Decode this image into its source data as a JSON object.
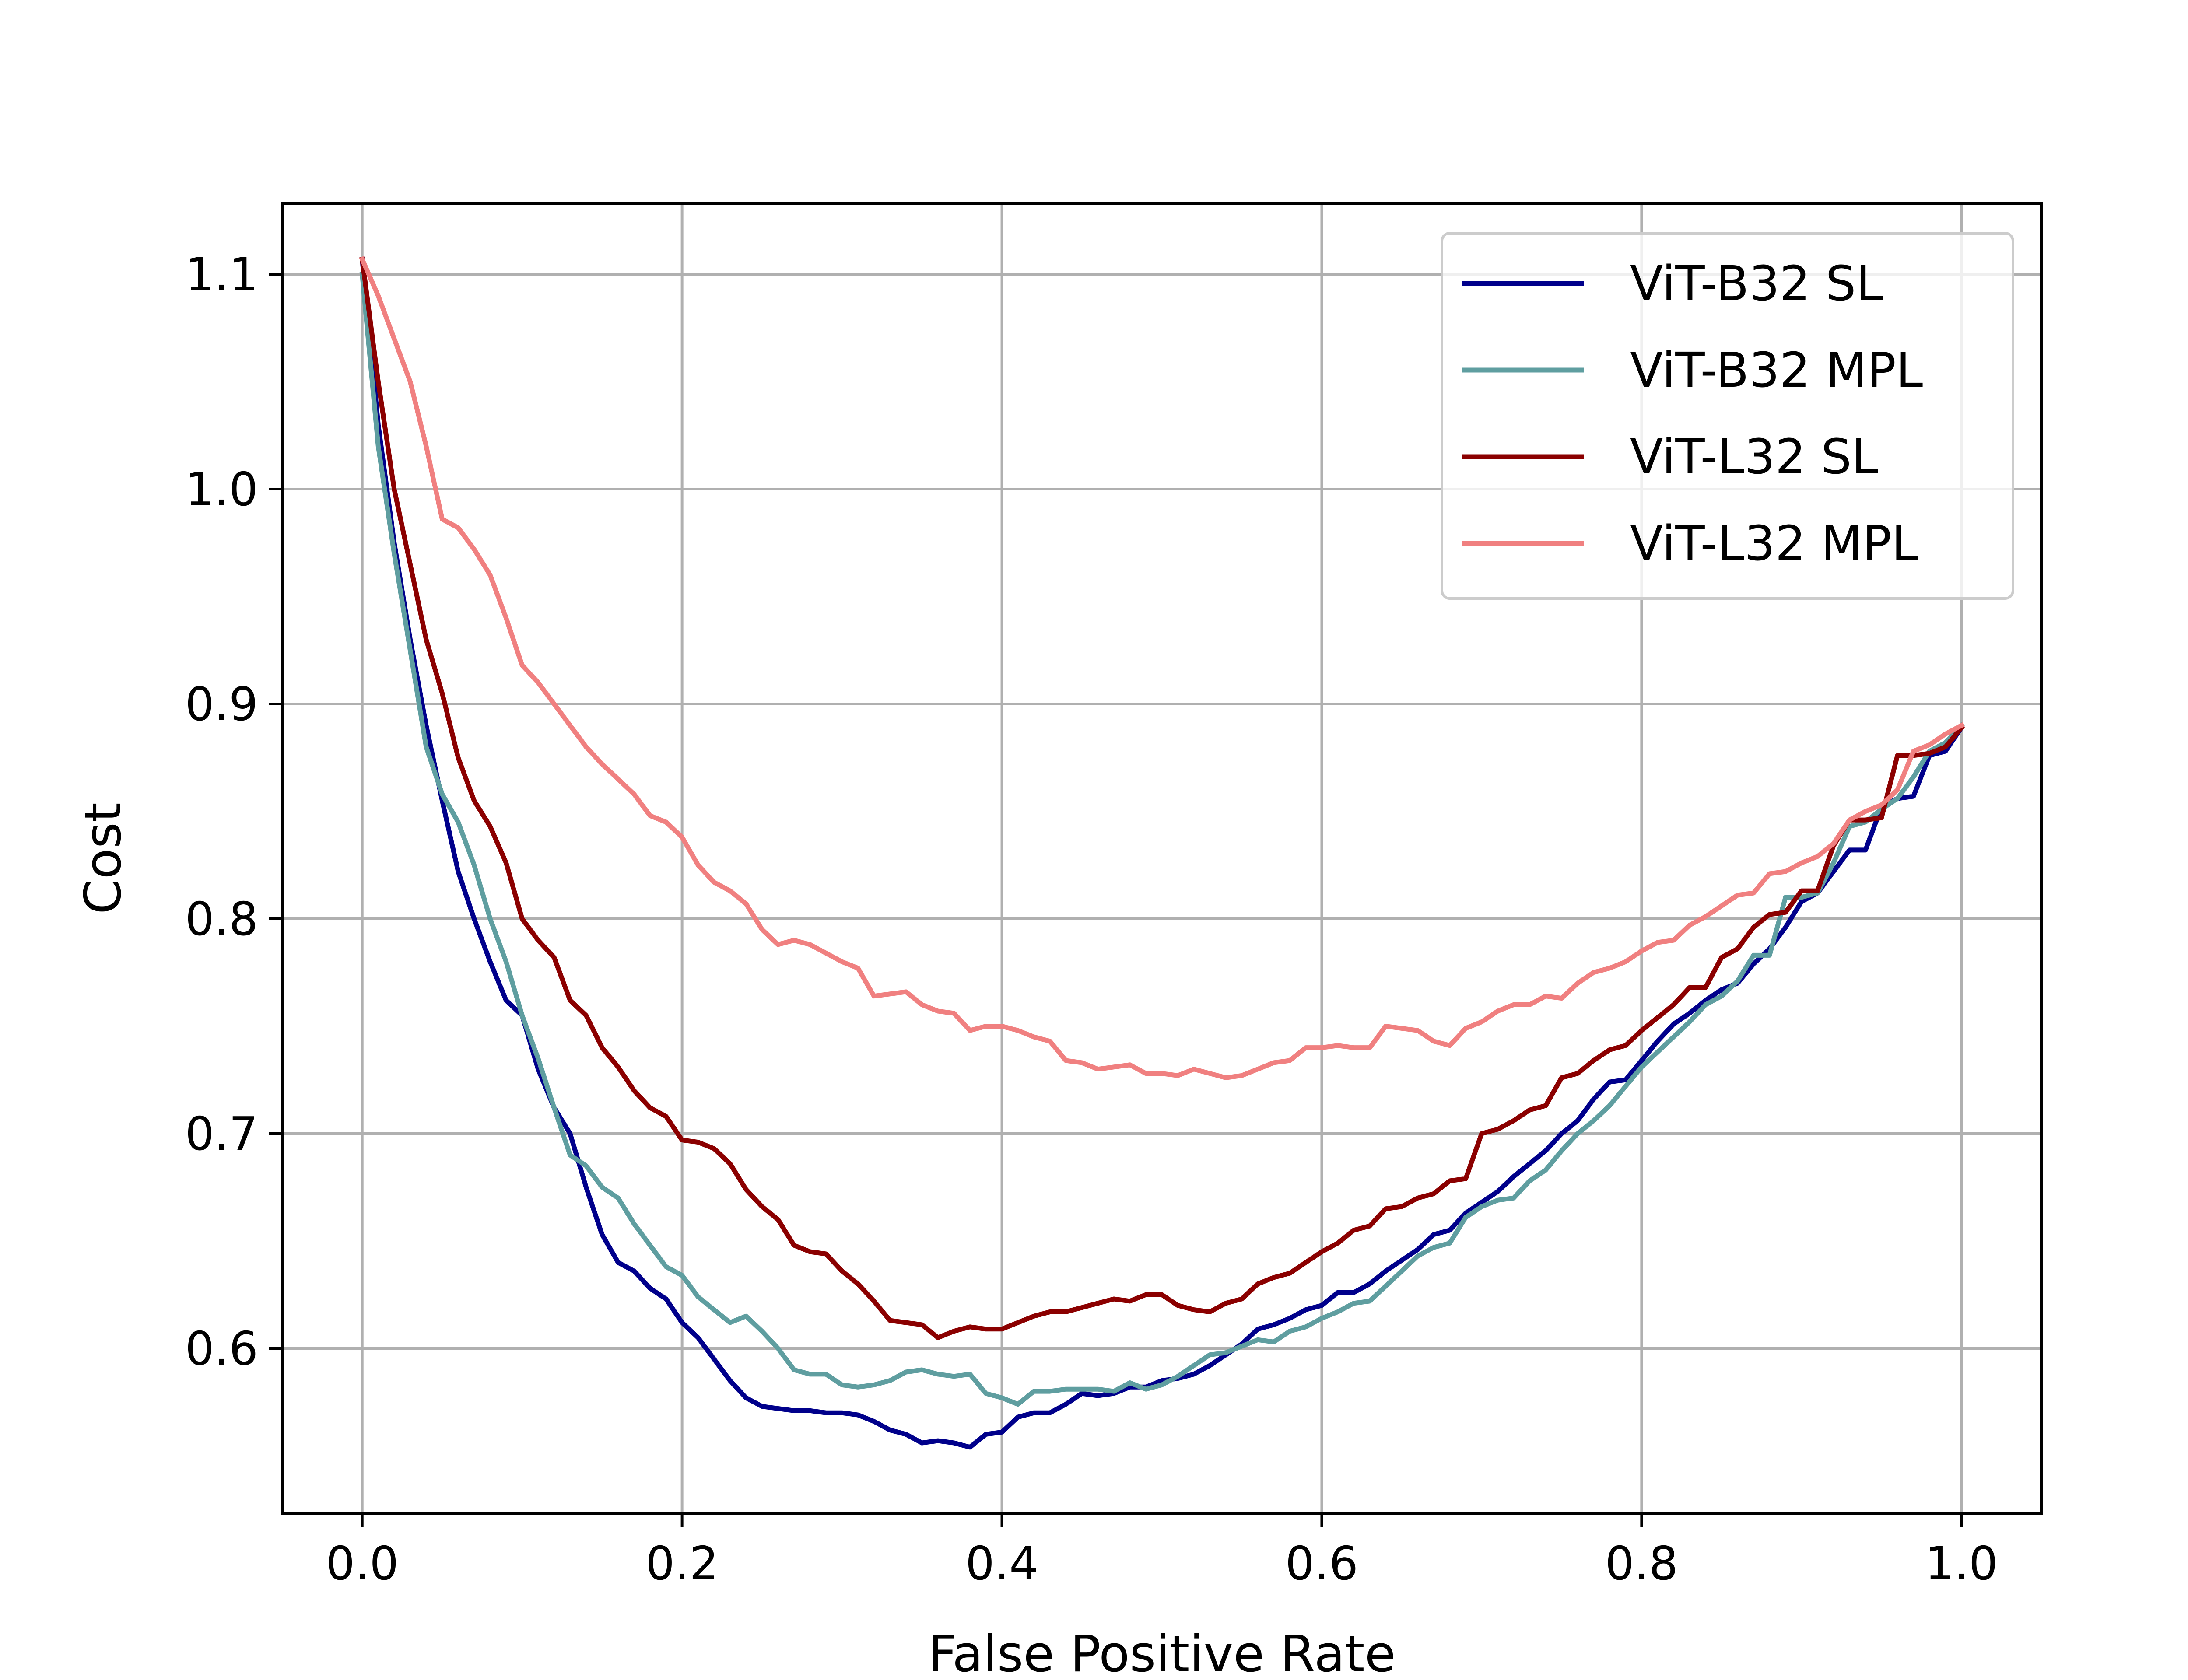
{
  "chart_data": {
    "type": "line",
    "title": "",
    "xlabel": "False Positive Rate",
    "ylabel": "Cost",
    "xlim": [
      -0.05,
      1.05
    ],
    "ylim": [
      0.523,
      1.133
    ],
    "xticks": [
      0.0,
      0.2,
      0.4,
      0.6,
      0.8,
      1.0
    ],
    "xtick_labels": [
      "0.0",
      "0.2",
      "0.4",
      "0.6",
      "0.8",
      "1.0"
    ],
    "yticks": [
      0.6,
      0.7,
      0.8,
      0.9,
      1.0,
      1.1
    ],
    "ytick_labels": [
      "0.6",
      "0.7",
      "0.8",
      "0.9",
      "1.0",
      "1.1"
    ],
    "grid": true,
    "legend_position": "top-right",
    "series": [
      {
        "name": "ViT-B32 SL",
        "color": "#00008b",
        "x": [
          0.0,
          0.01,
          0.02,
          0.03,
          0.04,
          0.05,
          0.06,
          0.07,
          0.08,
          0.09,
          0.1,
          0.11,
          0.12,
          0.13,
          0.14,
          0.15,
          0.16,
          0.17,
          0.18,
          0.19,
          0.2,
          0.21,
          0.22,
          0.23,
          0.24,
          0.25,
          0.26,
          0.27,
          0.28,
          0.29,
          0.3,
          0.31,
          0.32,
          0.33,
          0.34,
          0.35,
          0.36,
          0.37,
          0.38,
          0.39,
          0.4,
          0.41,
          0.42,
          0.43,
          0.44,
          0.45,
          0.46,
          0.47,
          0.48,
          0.49,
          0.5,
          0.51,
          0.52,
          0.53,
          0.54,
          0.55,
          0.56,
          0.57,
          0.58,
          0.59,
          0.6,
          0.61,
          0.62,
          0.63,
          0.64,
          0.65,
          0.66,
          0.67,
          0.68,
          0.69,
          0.7,
          0.71,
          0.72,
          0.73,
          0.74,
          0.75,
          0.76,
          0.77,
          0.78,
          0.79,
          0.8,
          0.81,
          0.82,
          0.83,
          0.84,
          0.85,
          0.86,
          0.87,
          0.88,
          0.89,
          0.9,
          0.91,
          0.92,
          0.93,
          0.94,
          0.95,
          0.96,
          0.97,
          0.98,
          0.99,
          1.0
        ],
        "y": [
          1.107,
          1.03,
          0.975,
          0.93,
          0.89,
          0.855,
          0.822,
          0.8,
          0.78,
          0.762,
          0.755,
          0.73,
          0.712,
          0.7,
          0.675,
          0.653,
          0.64,
          0.636,
          0.628,
          0.623,
          0.612,
          0.605,
          0.595,
          0.585,
          0.577,
          0.573,
          0.572,
          0.571,
          0.571,
          0.57,
          0.57,
          0.569,
          0.566,
          0.562,
          0.56,
          0.556,
          0.557,
          0.556,
          0.554,
          0.56,
          0.561,
          0.568,
          0.57,
          0.57,
          0.574,
          0.579,
          0.578,
          0.579,
          0.582,
          0.582,
          0.585,
          0.586,
          0.588,
          0.592,
          0.597,
          0.602,
          0.609,
          0.611,
          0.614,
          0.618,
          0.62,
          0.626,
          0.626,
          0.63,
          0.636,
          0.641,
          0.646,
          0.653,
          0.655,
          0.663,
          0.668,
          0.673,
          0.68,
          0.686,
          0.692,
          0.7,
          0.706,
          0.716,
          0.724,
          0.725,
          0.734,
          0.743,
          0.751,
          0.756,
          0.762,
          0.767,
          0.77,
          0.779,
          0.786,
          0.796,
          0.808,
          0.812,
          0.822,
          0.832,
          0.832,
          0.852,
          0.856,
          0.857,
          0.876,
          0.878,
          0.889
        ]
      },
      {
        "name": "ViT-B32 MPL",
        "color": "#5f9ea0",
        "x": [
          0.0,
          0.01,
          0.02,
          0.03,
          0.04,
          0.05,
          0.06,
          0.07,
          0.08,
          0.09,
          0.1,
          0.11,
          0.12,
          0.13,
          0.14,
          0.15,
          0.16,
          0.17,
          0.18,
          0.19,
          0.2,
          0.21,
          0.22,
          0.23,
          0.24,
          0.25,
          0.26,
          0.27,
          0.28,
          0.29,
          0.3,
          0.31,
          0.32,
          0.33,
          0.34,
          0.35,
          0.36,
          0.37,
          0.38,
          0.39,
          0.4,
          0.41,
          0.42,
          0.43,
          0.44,
          0.45,
          0.46,
          0.47,
          0.48,
          0.49,
          0.5,
          0.51,
          0.52,
          0.53,
          0.54,
          0.55,
          0.56,
          0.57,
          0.58,
          0.59,
          0.6,
          0.61,
          0.62,
          0.63,
          0.64,
          0.65,
          0.66,
          0.67,
          0.68,
          0.69,
          0.7,
          0.71,
          0.72,
          0.73,
          0.74,
          0.75,
          0.76,
          0.77,
          0.78,
          0.79,
          0.8,
          0.81,
          0.82,
          0.83,
          0.84,
          0.85,
          0.86,
          0.87,
          0.88,
          0.89,
          0.9,
          0.91,
          0.92,
          0.93,
          0.94,
          0.95,
          0.96,
          0.97,
          0.98,
          0.99,
          1.0
        ],
        "y": [
          1.1,
          1.02,
          0.97,
          0.925,
          0.88,
          0.858,
          0.845,
          0.825,
          0.8,
          0.78,
          0.755,
          0.735,
          0.712,
          0.69,
          0.685,
          0.675,
          0.67,
          0.658,
          0.648,
          0.638,
          0.634,
          0.624,
          0.618,
          0.612,
          0.615,
          0.608,
          0.6,
          0.59,
          0.588,
          0.588,
          0.583,
          0.582,
          0.583,
          0.585,
          0.589,
          0.59,
          0.588,
          0.587,
          0.588,
          0.579,
          0.577,
          0.574,
          0.58,
          0.58,
          0.581,
          0.581,
          0.581,
          0.58,
          0.584,
          0.581,
          0.583,
          0.587,
          0.592,
          0.597,
          0.598,
          0.601,
          0.604,
          0.603,
          0.608,
          0.61,
          0.614,
          0.617,
          0.621,
          0.622,
          0.629,
          0.636,
          0.643,
          0.647,
          0.649,
          0.661,
          0.666,
          0.669,
          0.67,
          0.678,
          0.683,
          0.692,
          0.7,
          0.706,
          0.713,
          0.722,
          0.731,
          0.738,
          0.745,
          0.752,
          0.76,
          0.764,
          0.771,
          0.783,
          0.783,
          0.81,
          0.81,
          0.812,
          0.826,
          0.843,
          0.845,
          0.851,
          0.856,
          0.866,
          0.878,
          0.882,
          0.89
        ]
      },
      {
        "name": "ViT-L32 SL",
        "color": "#8b0000",
        "x": [
          0.0,
          0.01,
          0.02,
          0.03,
          0.04,
          0.05,
          0.06,
          0.07,
          0.08,
          0.09,
          0.1,
          0.11,
          0.12,
          0.13,
          0.14,
          0.15,
          0.16,
          0.17,
          0.18,
          0.19,
          0.2,
          0.21,
          0.22,
          0.23,
          0.24,
          0.25,
          0.26,
          0.27,
          0.28,
          0.29,
          0.3,
          0.31,
          0.32,
          0.33,
          0.34,
          0.35,
          0.36,
          0.37,
          0.38,
          0.39,
          0.4,
          0.41,
          0.42,
          0.43,
          0.44,
          0.45,
          0.46,
          0.47,
          0.48,
          0.49,
          0.5,
          0.51,
          0.52,
          0.53,
          0.54,
          0.55,
          0.56,
          0.57,
          0.58,
          0.59,
          0.6,
          0.61,
          0.62,
          0.63,
          0.64,
          0.65,
          0.66,
          0.67,
          0.68,
          0.69,
          0.7,
          0.71,
          0.72,
          0.73,
          0.74,
          0.75,
          0.76,
          0.77,
          0.78,
          0.79,
          0.8,
          0.81,
          0.82,
          0.83,
          0.84,
          0.85,
          0.86,
          0.87,
          0.88,
          0.89,
          0.9,
          0.91,
          0.92,
          0.93,
          0.94,
          0.95,
          0.96,
          0.97,
          0.98,
          0.99,
          1.0
        ],
        "y": [
          1.107,
          1.05,
          1.0,
          0.965,
          0.93,
          0.905,
          0.875,
          0.855,
          0.843,
          0.826,
          0.8,
          0.79,
          0.782,
          0.762,
          0.755,
          0.74,
          0.731,
          0.72,
          0.712,
          0.708,
          0.697,
          0.696,
          0.693,
          0.686,
          0.674,
          0.666,
          0.66,
          0.648,
          0.645,
          0.644,
          0.636,
          0.63,
          0.622,
          0.613,
          0.612,
          0.611,
          0.605,
          0.608,
          0.61,
          0.609,
          0.609,
          0.612,
          0.615,
          0.617,
          0.617,
          0.619,
          0.621,
          0.623,
          0.622,
          0.625,
          0.625,
          0.62,
          0.618,
          0.617,
          0.621,
          0.623,
          0.63,
          0.633,
          0.635,
          0.64,
          0.645,
          0.649,
          0.655,
          0.657,
          0.665,
          0.666,
          0.67,
          0.672,
          0.678,
          0.679,
          0.7,
          0.702,
          0.706,
          0.711,
          0.713,
          0.726,
          0.728,
          0.734,
          0.739,
          0.741,
          0.748,
          0.754,
          0.76,
          0.768,
          0.768,
          0.782,
          0.786,
          0.796,
          0.802,
          0.803,
          0.813,
          0.813,
          0.834,
          0.846,
          0.846,
          0.847,
          0.876,
          0.876,
          0.877,
          0.88,
          0.889
        ]
      },
      {
        "name": "ViT-L32 MPL",
        "color": "#f08080",
        "x": [
          0.0,
          0.01,
          0.02,
          0.03,
          0.04,
          0.05,
          0.06,
          0.07,
          0.08,
          0.09,
          0.1,
          0.11,
          0.12,
          0.13,
          0.14,
          0.15,
          0.16,
          0.17,
          0.18,
          0.19,
          0.2,
          0.21,
          0.22,
          0.23,
          0.24,
          0.25,
          0.26,
          0.27,
          0.28,
          0.29,
          0.3,
          0.31,
          0.32,
          0.33,
          0.34,
          0.35,
          0.36,
          0.37,
          0.38,
          0.39,
          0.4,
          0.41,
          0.42,
          0.43,
          0.44,
          0.45,
          0.46,
          0.47,
          0.48,
          0.49,
          0.5,
          0.51,
          0.52,
          0.53,
          0.54,
          0.55,
          0.56,
          0.57,
          0.58,
          0.59,
          0.6,
          0.61,
          0.62,
          0.63,
          0.64,
          0.65,
          0.66,
          0.67,
          0.68,
          0.69,
          0.7,
          0.71,
          0.72,
          0.73,
          0.74,
          0.75,
          0.76,
          0.77,
          0.78,
          0.79,
          0.8,
          0.81,
          0.82,
          0.83,
          0.84,
          0.85,
          0.86,
          0.87,
          0.88,
          0.89,
          0.9,
          0.91,
          0.92,
          0.93,
          0.94,
          0.95,
          0.96,
          0.97,
          0.98,
          0.99,
          1.0
        ],
        "y": [
          1.107,
          1.09,
          1.07,
          1.05,
          1.02,
          0.986,
          0.982,
          0.972,
          0.96,
          0.94,
          0.918,
          0.91,
          0.9,
          0.89,
          0.88,
          0.872,
          0.865,
          0.858,
          0.848,
          0.845,
          0.838,
          0.825,
          0.817,
          0.813,
          0.807,
          0.795,
          0.788,
          0.79,
          0.788,
          0.784,
          0.78,
          0.777,
          0.764,
          0.765,
          0.766,
          0.76,
          0.757,
          0.756,
          0.748,
          0.75,
          0.75,
          0.748,
          0.745,
          0.743,
          0.734,
          0.733,
          0.73,
          0.731,
          0.732,
          0.728,
          0.728,
          0.727,
          0.73,
          0.728,
          0.726,
          0.727,
          0.73,
          0.733,
          0.734,
          0.74,
          0.74,
          0.741,
          0.74,
          0.74,
          0.75,
          0.749,
          0.748,
          0.743,
          0.741,
          0.749,
          0.752,
          0.757,
          0.76,
          0.76,
          0.764,
          0.763,
          0.77,
          0.775,
          0.777,
          0.78,
          0.785,
          0.789,
          0.79,
          0.797,
          0.801,
          0.806,
          0.811,
          0.812,
          0.821,
          0.822,
          0.826,
          0.829,
          0.835,
          0.846,
          0.85,
          0.853,
          0.86,
          0.878,
          0.881,
          0.886,
          0.89
        ]
      }
    ]
  }
}
